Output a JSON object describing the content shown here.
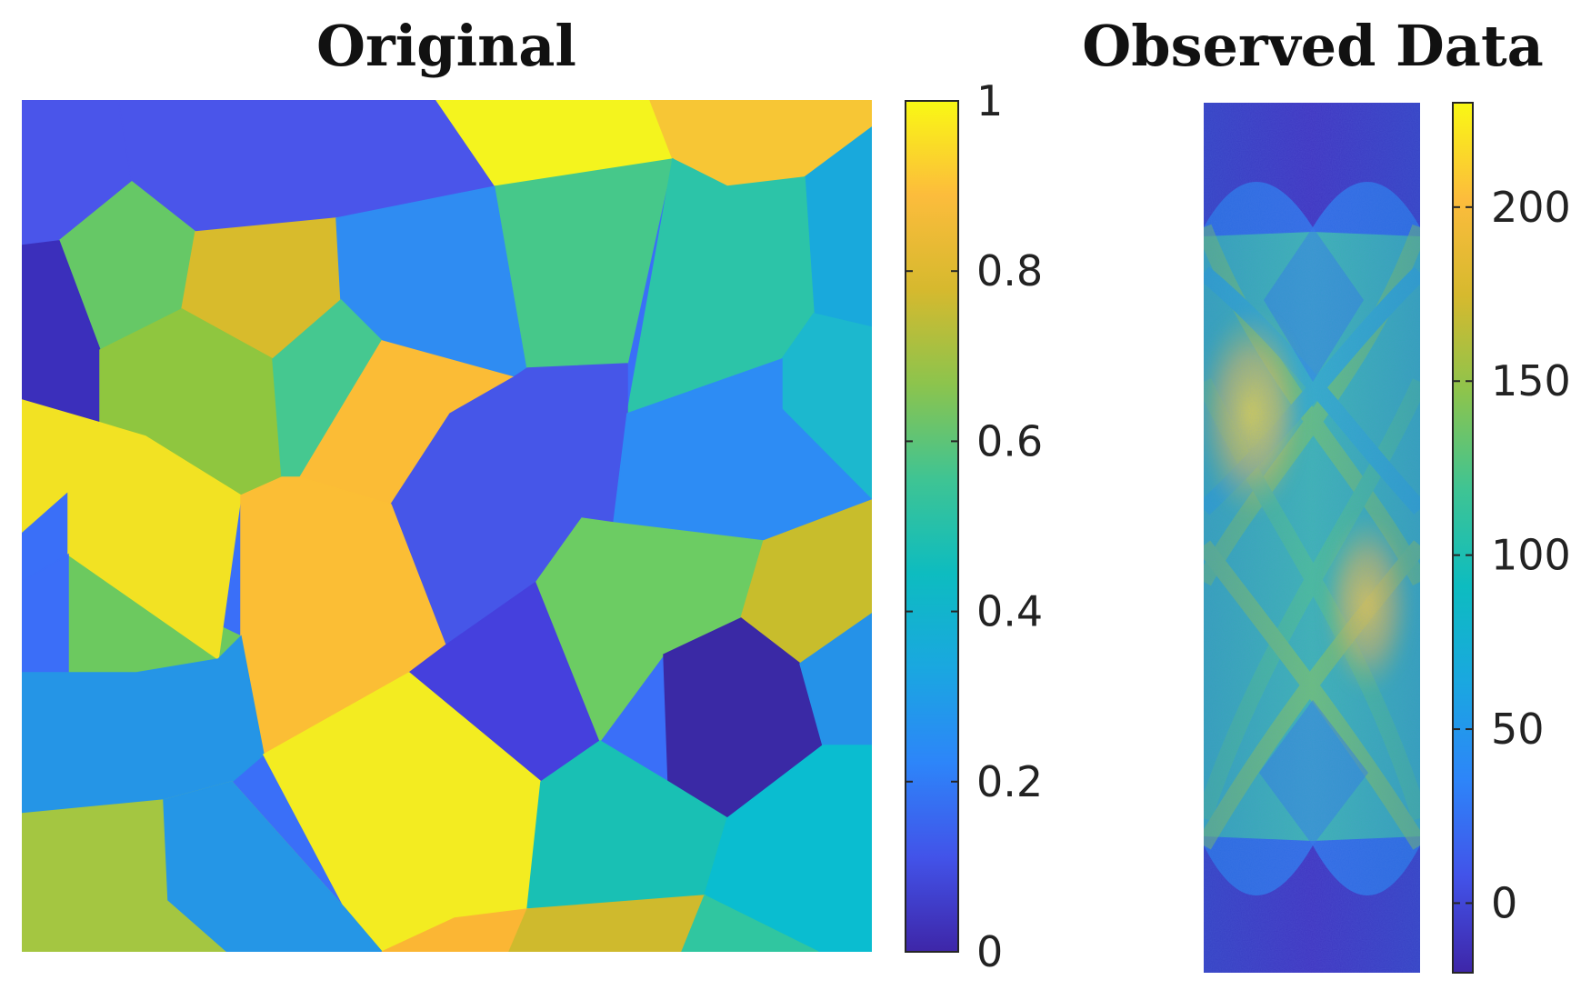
{
  "chart_data": [
    {
      "type": "heatmap",
      "title": "Original",
      "description_kind": "voronoi-cells",
      "colormap": [
        "#3e26a8",
        "#4253e9",
        "#2d85f9",
        "#1aa7e0",
        "#0dbcc0",
        "#3fc493",
        "#8cc44d",
        "#d6b92e",
        "#fcbc3c",
        "#f9f814"
      ],
      "colorbar": {
        "range": [
          0,
          1
        ],
        "ticks": [
          0,
          0.2,
          0.4,
          0.6,
          0.8,
          1
        ],
        "tick_labels": [
          "0",
          "0.2",
          "0.4",
          "0.6",
          "0.8",
          "1"
        ]
      },
      "cells": [
        {
          "value": 0.14,
          "color": "#4a55ea"
        },
        {
          "value": 0.16,
          "color": "#4a55ea"
        },
        {
          "value": 0.99,
          "color": "#f4f41e"
        },
        {
          "value": 0.9,
          "color": "#f7c635"
        },
        {
          "value": 0.38,
          "color": "#19a9dc"
        },
        {
          "value": 0.66,
          "color": "#66c866"
        },
        {
          "value": 0.8,
          "color": "#d8bb2c"
        },
        {
          "value": 0.3,
          "color": "#2f8cf2"
        },
        {
          "value": 0.6,
          "color": "#46c88a"
        },
        {
          "value": 0.55,
          "color": "#2cc4a8"
        },
        {
          "value": 0.48,
          "color": "#1cb8ce"
        },
        {
          "value": 0.05,
          "color": "#3b2fbb"
        },
        {
          "value": 0.74,
          "color": "#8fc63f"
        },
        {
          "value": 0.6,
          "color": "#45c890"
        },
        {
          "value": 0.9,
          "color": "#fbbc36"
        },
        {
          "value": 0.15,
          "color": "#4656e8"
        },
        {
          "value": 0.3,
          "color": "#2d8cf4"
        },
        {
          "value": 0.2,
          "color": "#3a6ff8"
        },
        {
          "value": 0.68,
          "color": "#6cc95f"
        },
        {
          "value": 0.98,
          "color": "#f2e223"
        },
        {
          "value": 0.89,
          "color": "#fbbe35"
        },
        {
          "value": 0.24,
          "color": "#3b6ef8"
        },
        {
          "value": 0.1,
          "color": "#4540dd"
        },
        {
          "value": 0.68,
          "color": "#6ccc63"
        },
        {
          "value": 0.8,
          "color": "#c8bd2c"
        },
        {
          "value": 0.36,
          "color": "#2595e6"
        },
        {
          "value": 0.0,
          "color": "#3a29a5"
        },
        {
          "value": 0.32,
          "color": "#2592e8"
        },
        {
          "value": 0.99,
          "color": "#f3ec21"
        },
        {
          "value": 0.53,
          "color": "#19c0b4"
        },
        {
          "value": 0.48,
          "color": "#0abdd0"
        },
        {
          "value": 0.72,
          "color": "#a4c641"
        },
        {
          "value": 0.36,
          "color": "#2596e6"
        },
        {
          "value": 0.9,
          "color": "#fbb634"
        },
        {
          "value": 0.8,
          "color": "#cfba2d"
        },
        {
          "value": 0.58,
          "color": "#30c6a0"
        }
      ]
    },
    {
      "type": "heatmap",
      "title": "Observed Data",
      "description_kind": "sinogram",
      "colorbar": {
        "range": [
          -20,
          230
        ],
        "ticks": [
          0,
          50,
          100,
          150,
          200
        ],
        "tick_labels": [
          "0",
          "50",
          "100",
          "150",
          "200"
        ]
      },
      "peak_regions": [
        {
          "label": "upper-left bright lobe",
          "value": 215
        },
        {
          "label": "lower-right bright lobe",
          "value": 205
        }
      ]
    }
  ]
}
